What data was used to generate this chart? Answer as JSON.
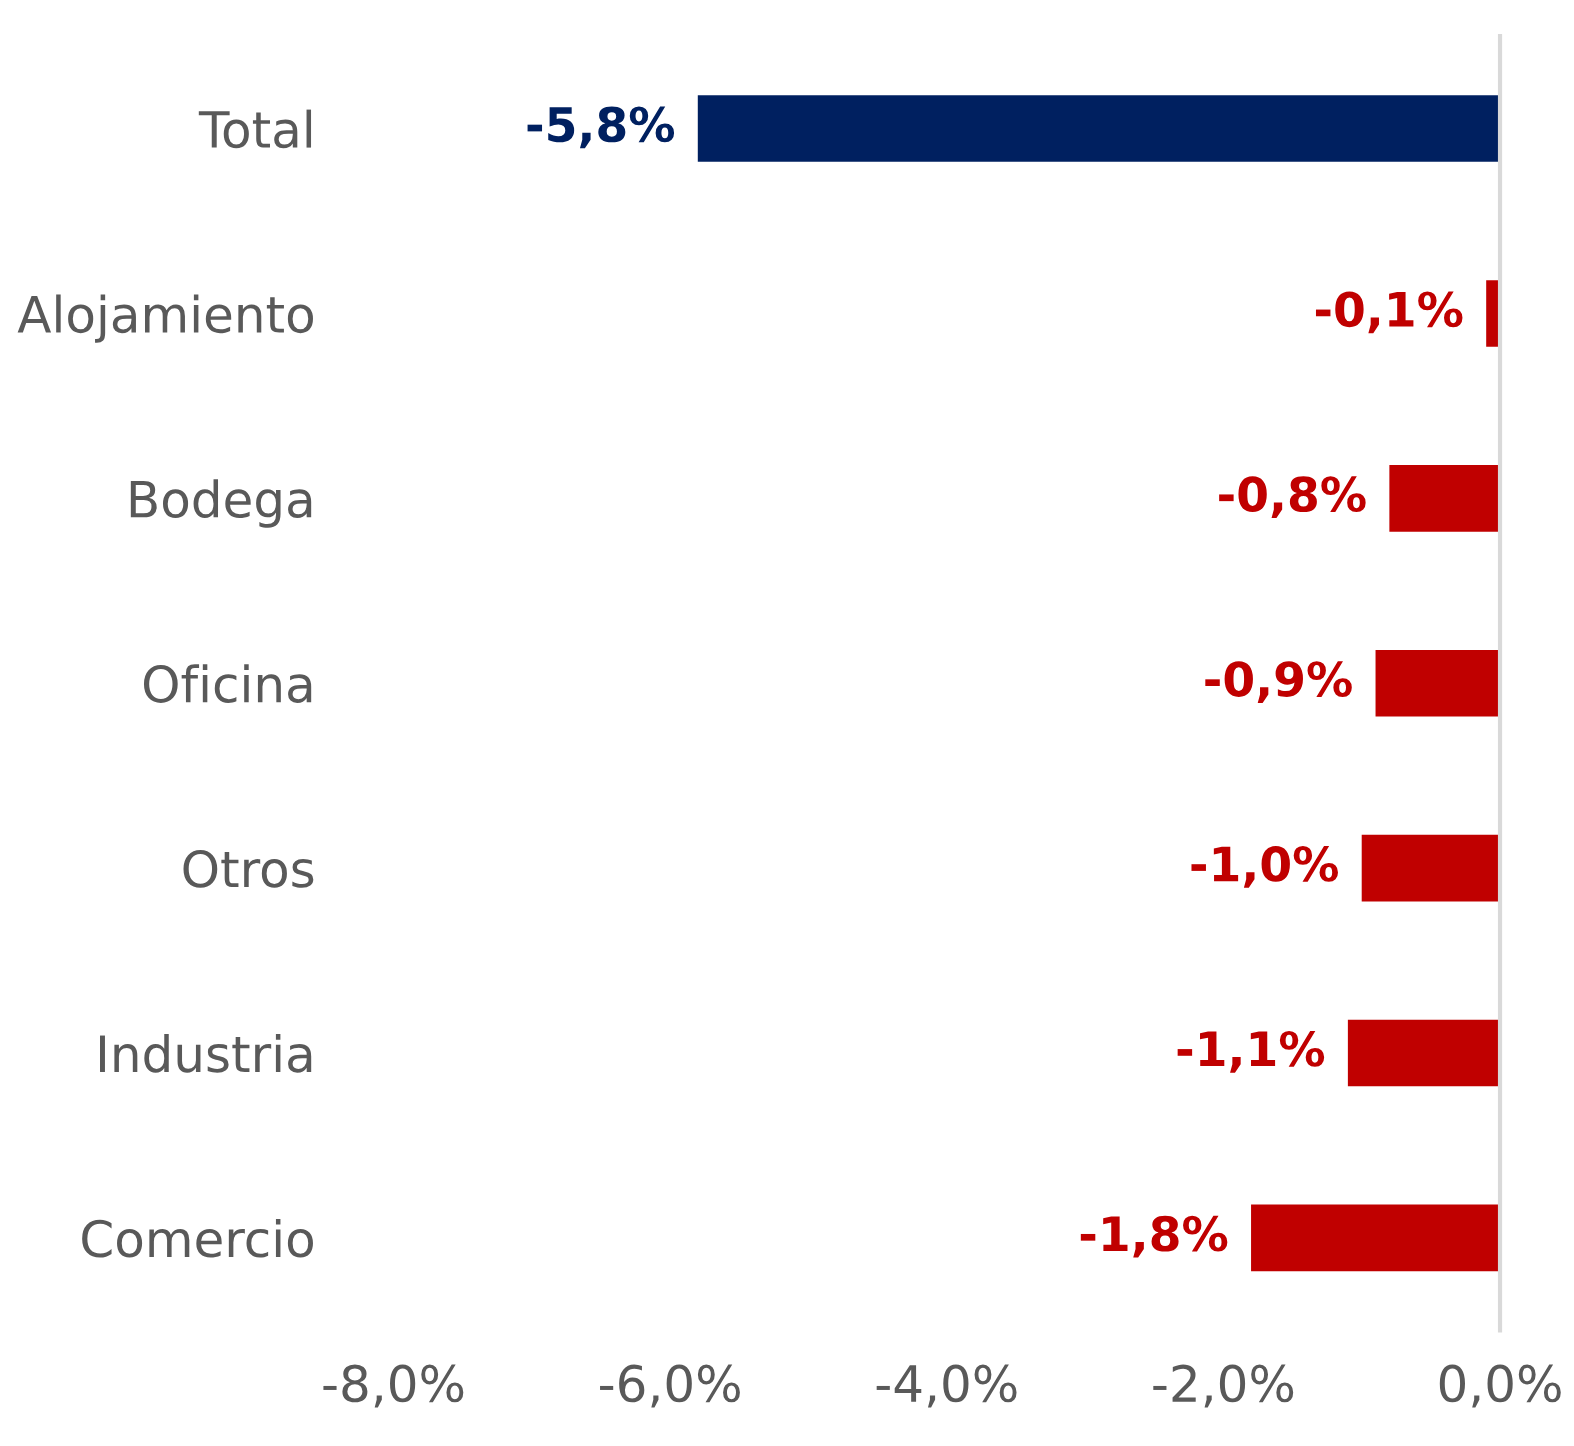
{
  "chart_data": {
    "type": "bar",
    "orientation": "horizontal",
    "categories": [
      "Total",
      "Alojamiento",
      "Bodega",
      "Oficina",
      "Otros",
      "Industria",
      "Comercio"
    ],
    "values": [
      -5.8,
      -0.1,
      -0.8,
      -0.9,
      -1.0,
      -1.1,
      -1.8
    ],
    "colors": [
      "#002060",
      "#c00000",
      "#c00000",
      "#c00000",
      "#c00000",
      "#c00000",
      "#c00000"
    ],
    "value_labels": [
      "-5,8%",
      "-0,1%",
      "-0,8%",
      "-0,9%",
      "-1,0%",
      "-1,1%",
      "-1,8%"
    ],
    "xlim": [
      -8,
      0
    ],
    "xticks": [
      {
        "value": -8,
        "label": "-8,0%"
      },
      {
        "value": -6,
        "label": "-6,0%"
      },
      {
        "value": -4,
        "label": "-4,0%"
      },
      {
        "value": -2,
        "label": "-2,0%"
      },
      {
        "value": 0,
        "label": "0,0%"
      }
    ],
    "grid": false,
    "legend": false
  }
}
